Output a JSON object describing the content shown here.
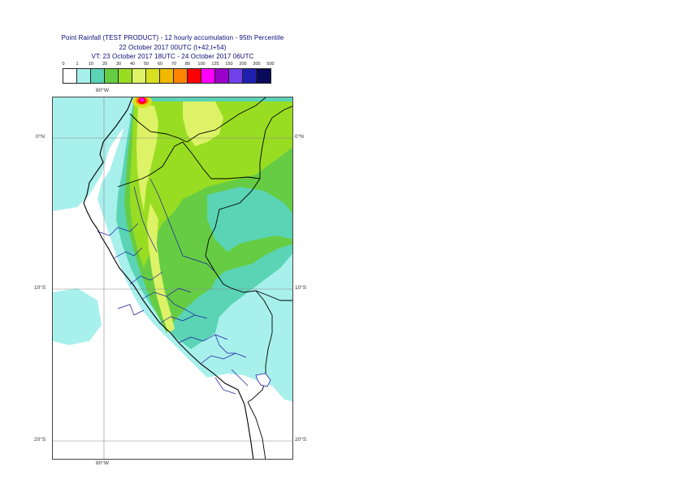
{
  "title": {
    "line1": "Point Rainfall (TEST PRODUCT) - 12 hourly accumulation - 95th Percentile",
    "line2": "22 October 2017 00UTC (t+42,t+54)",
    "line3": "VT: 23 October 2017 18UTC - 24 October 2017 06UTC"
  },
  "legend": {
    "labels": [
      "0",
      "1",
      "10",
      "20",
      "30",
      "40",
      "50",
      "60",
      "70",
      "80",
      "100",
      "125",
      "150",
      "200",
      "300",
      "500"
    ],
    "colors": [
      "#ffffff",
      "#a8f0ec",
      "#5ad4b4",
      "#66cc44",
      "#99dd22",
      "#ddf266",
      "#d6e020",
      "#f0b800",
      "#ff8400",
      "#ff0000",
      "#ff00ff",
      "#9a00c8",
      "#7040e8",
      "#2020b0",
      "#0a0a5a"
    ]
  },
  "map": {
    "lat_labels": [
      "0°N",
      "10°S",
      "20°S"
    ],
    "lon_labels": [
      "80°W",
      "80°W"
    ]
  }
}
